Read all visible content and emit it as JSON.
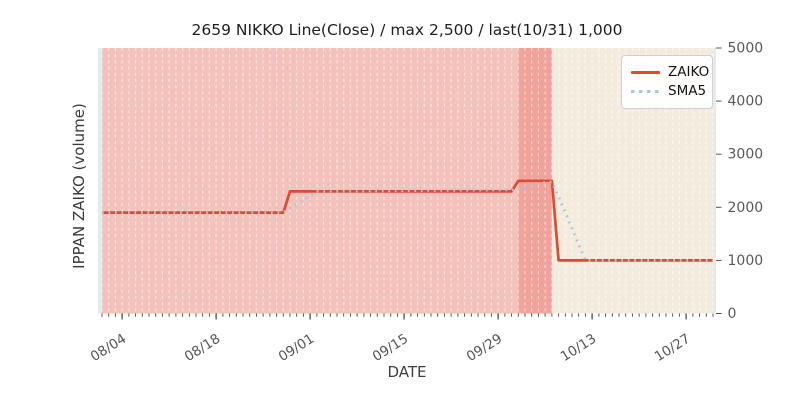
{
  "chart_data": {
    "type": "line",
    "title": "2659 NIKKO Line(Close) / max 2,500 / last(10/31) 1,000",
    "xlabel": "DATE",
    "ylabel": "IPPAN ZAIKO (volume)",
    "ylim": [
      0,
      5000
    ],
    "y_ticks": [
      "0",
      "1000",
      "2000",
      "3000",
      "4000",
      "5000"
    ],
    "y_tick_values": [
      0,
      1000,
      2000,
      3000,
      4000,
      5000
    ],
    "y_axis_side": "right",
    "x_range": [
      "08/01",
      "10/31"
    ],
    "x_major_ticks": [
      "08/04",
      "08/18",
      "09/01",
      "09/15",
      "09/29",
      "10/13",
      "10/27"
    ],
    "x_minor_tick_interval_days": 1,
    "grid": "vertical-white-dashed-daily",
    "plot_bg": "#e8e8e9",
    "legend": {
      "position": "top-right",
      "entries": [
        {
          "label": "ZAIKO",
          "style": "solid",
          "color": "#df4a32"
        },
        {
          "label": "SMA5",
          "style": "dotted",
          "color": "#a4c6e0"
        }
      ]
    },
    "background_spans": [
      {
        "label": "holding-span",
        "from": "08/01",
        "to": "10/02",
        "color": "#f3c2bb"
      },
      {
        "label": "alert-span",
        "from": "10/02",
        "to": "10/07",
        "color": "#f0a29b"
      },
      {
        "label": "after-drop-span",
        "from": "10/07",
        "to": "10/31",
        "color": "#f4ebdf"
      }
    ],
    "series": [
      {
        "name": "ZAIKO",
        "color": "#df4a32",
        "style": "solid",
        "points": [
          [
            "08/01",
            1900
          ],
          [
            "08/28",
            1900
          ],
          [
            "08/29",
            2300
          ],
          [
            "10/01",
            2300
          ],
          [
            "10/02",
            2500
          ],
          [
            "10/07",
            2500
          ],
          [
            "10/08",
            1000
          ],
          [
            "10/31",
            1000
          ]
        ]
      },
      {
        "name": "SMA5",
        "color": "#a4c6e0",
        "style": "dotted",
        "points": [
          [
            "08/01",
            1900
          ],
          [
            "08/28",
            1900
          ],
          [
            "08/29",
            1980
          ],
          [
            "08/30",
            2060
          ],
          [
            "08/31",
            2140
          ],
          [
            "09/01",
            2220
          ],
          [
            "09/02",
            2300
          ],
          [
            "10/02",
            2330
          ],
          [
            "10/03",
            2380
          ],
          [
            "10/04",
            2420
          ],
          [
            "10/05",
            2450
          ],
          [
            "10/06",
            2470
          ],
          [
            "10/07",
            2480
          ],
          [
            "10/08",
            2200
          ],
          [
            "10/09",
            1900
          ],
          [
            "10/10",
            1600
          ],
          [
            "10/11",
            1300
          ],
          [
            "10/12",
            1000
          ],
          [
            "10/31",
            1000
          ]
        ]
      }
    ],
    "annotations": {
      "max_value": "2,500",
      "last_date": "10/31",
      "last_value": "1,000",
      "ticker": "2659 NIKKO"
    }
  }
}
